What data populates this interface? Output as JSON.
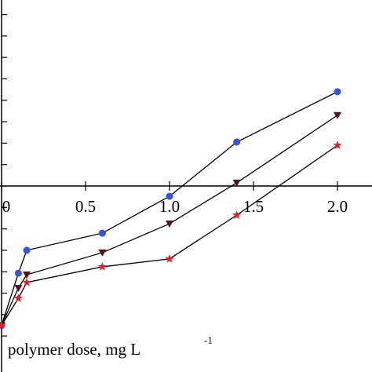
{
  "chart_data": {
    "type": "line",
    "x_label": "polymer dose, mg L",
    "x_label_sup": "-1",
    "xlim": [
      -0.0093,
      2.2056
    ],
    "ylim": [
      -8.68,
      8.68
    ],
    "xticks": [
      0,
      0.5,
      {
        "value": 1.0,
        "label": "1.0"
      },
      1.5,
      {
        "value": 2.0,
        "label": "2.0"
      }
    ],
    "yticks": [
      -7,
      -6,
      -5,
      -4,
      -3,
      -2,
      -1,
      0,
      1,
      2,
      3,
      4,
      5,
      6,
      7,
      8
    ],
    "series": [
      {
        "name": null,
        "color": "#3355dd",
        "marker": "circle",
        "x": [
          0,
          0.1,
          0.15,
          0.6,
          1.0,
          1.4,
          2.0
        ],
        "values": [
          -6.5,
          -4.07,
          -3.0,
          -2.2,
          -0.48,
          2.05,
          4.4
        ]
      },
      {
        "name": null,
        "color": "#5a0f1a",
        "marker": "triangle",
        "x": [
          0,
          0.1,
          0.15,
          0.6,
          1.0,
          1.4,
          2.0
        ],
        "values": [
          -6.5,
          -4.76,
          -4.14,
          -3.11,
          -1.76,
          0.15,
          3.3
        ]
      },
      {
        "name": null,
        "color": "#e0202a",
        "marker": "star",
        "x": [
          0,
          0.1,
          0.15,
          0.6,
          1.0,
          1.4,
          2.0
        ],
        "values": [
          -6.5,
          -5.24,
          -4.5,
          -3.77,
          -3.4,
          -1.36,
          1.9
        ]
      }
    ]
  }
}
